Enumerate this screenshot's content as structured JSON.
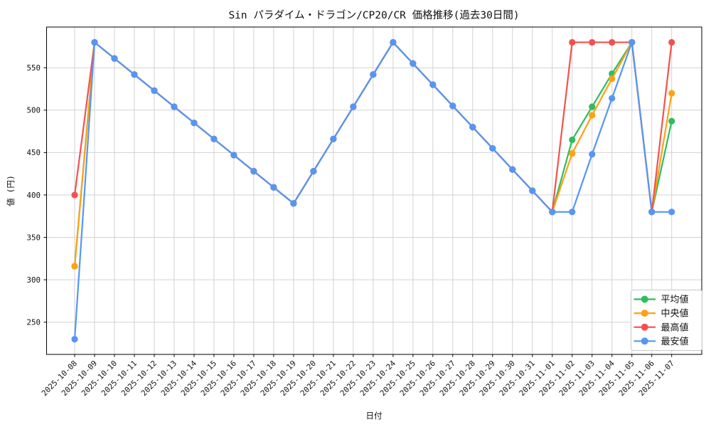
{
  "chart_data": {
    "type": "line",
    "title": "Sin パラダイム・ドラゴン/CP20/CR 価格推移(過去30日間)",
    "xlabel": "日付",
    "ylabel": "値 (円)",
    "x": [
      "2025-10-08",
      "2025-10-09",
      "2025-10-10",
      "2025-10-11",
      "2025-10-12",
      "2025-10-13",
      "2025-10-14",
      "2025-10-15",
      "2025-10-16",
      "2025-10-17",
      "2025-10-18",
      "2025-10-19",
      "2025-10-20",
      "2025-10-21",
      "2025-10-22",
      "2025-10-23",
      "2025-10-24",
      "2025-10-25",
      "2025-10-26",
      "2025-10-27",
      "2025-10-28",
      "2025-10-29",
      "2025-10-30",
      "2025-10-31",
      "2025-11-01",
      "2025-11-02",
      "2025-11-03",
      "2025-11-04",
      "2025-11-05",
      "2025-11-06",
      "2025-11-07"
    ],
    "y_ticks": [
      250,
      300,
      350,
      400,
      450,
      500,
      550
    ],
    "ylim": [
      212,
      598
    ],
    "grid": true,
    "legend_position": "lower right",
    "marker": "circle",
    "series": [
      {
        "name": "平均値",
        "key": "average",
        "color": "#2ebd5e",
        "values": [
          316,
          580,
          561,
          542,
          523,
          504,
          485,
          466,
          447,
          428,
          409,
          390,
          428,
          466,
          504,
          542,
          580,
          555,
          530,
          505,
          480,
          455,
          430,
          405,
          380,
          465,
          504,
          543,
          580,
          380,
          487
        ]
      },
      {
        "name": "中央値",
        "key": "median",
        "color": "#ffa113",
        "values": [
          316,
          580,
          561,
          542,
          523,
          504,
          485,
          466,
          447,
          428,
          409,
          390,
          428,
          466,
          504,
          542,
          580,
          555,
          530,
          505,
          480,
          455,
          430,
          405,
          380,
          449,
          494,
          537,
          580,
          380,
          520
        ]
      },
      {
        "name": "最高値",
        "key": "highest",
        "color": "#f4514e",
        "values": [
          400,
          580,
          561,
          542,
          523,
          504,
          485,
          466,
          447,
          428,
          409,
          390,
          428,
          466,
          504,
          542,
          580,
          555,
          530,
          505,
          480,
          455,
          430,
          405,
          380,
          580,
          580,
          580,
          580,
          380,
          580
        ]
      },
      {
        "name": "最安値",
        "key": "lowest",
        "color": "#5596f4",
        "values": [
          230,
          580,
          561,
          542,
          523,
          504,
          485,
          466,
          447,
          428,
          409,
          390,
          428,
          466,
          504,
          542,
          580,
          555,
          530,
          505,
          480,
          455,
          430,
          405,
          380,
          380,
          448,
          514,
          580,
          380,
          380
        ]
      }
    ]
  }
}
